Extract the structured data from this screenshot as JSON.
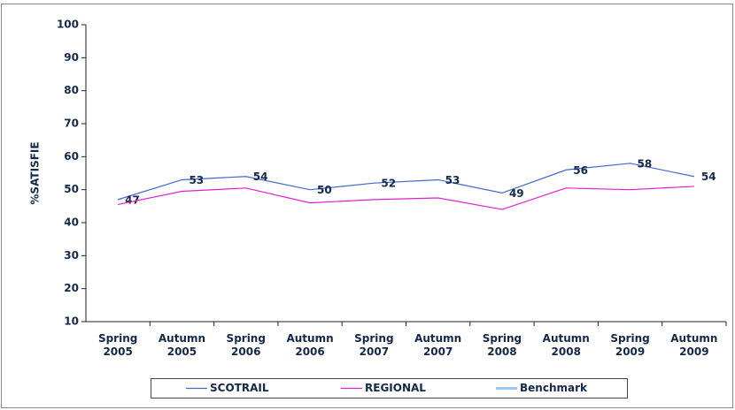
{
  "chart_data": {
    "type": "line",
    "y_label": "%SATISFIE",
    "categories": [
      "Spring 2005",
      "Autumn 2005",
      "Spring 2006",
      "Autumn 2006",
      "Spring 2007",
      "Autumn 2007",
      "Spring 2008",
      "Autumn 2008",
      "Spring 2009",
      "Autumn 2009"
    ],
    "series": [
      {
        "name": "SCOTRAIL",
        "color": "#4169c8",
        "values": [
          47,
          53,
          54,
          50,
          52,
          53,
          49,
          56,
          58,
          54
        ],
        "data_labels": true
      },
      {
        "name": "REGIONAL",
        "color": "#e020d0",
        "values": [
          45.5,
          49.5,
          50.5,
          46,
          47,
          47.5,
          44,
          50.5,
          50,
          51
        ],
        "data_labels": false
      },
      {
        "name": "Benchmark",
        "color": "#9cc8ee",
        "values": [
          null,
          null,
          null,
          null,
          null,
          null,
          null,
          null,
          null,
          null
        ],
        "data_labels": false
      }
    ],
    "ylim": [
      10,
      100
    ],
    "yticks": [
      10,
      20,
      30,
      40,
      50,
      60,
      70,
      80,
      90,
      100
    ],
    "grid": false,
    "legend": "bottom"
  }
}
